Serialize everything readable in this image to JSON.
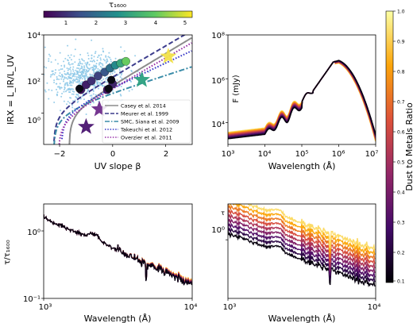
{
  "figure": {
    "top_colorbar_label": "τ₁₆₀₀",
    "top_colorbar_ticks": [
      "1",
      "2",
      "3",
      "4",
      "5"
    ],
    "right_colorbar_label": "Dust to Metals Ratio",
    "right_colorbar_ticks": [
      "0.1",
      "0.2",
      "0.3",
      "0.4",
      "0.5",
      "0.6",
      "0.7",
      "0.8",
      "0.9",
      "1.0"
    ]
  },
  "chart_data": [
    {
      "type": "scatter",
      "panel": "top-left",
      "xlabel": "UV slope β",
      "ylabel": "IRX = L_IR/L_UV",
      "xlim": [
        -2.6,
        3.0
      ],
      "ylim_log10": [
        -1.6,
        4.0
      ],
      "x_ticks": [
        "−2",
        "0",
        "2"
      ],
      "y_ticks": [
        "10⁰",
        "10²",
        "10⁴"
      ],
      "legend": {
        "placement": "lower-right",
        "entries": [
          {
            "label": "Casey et al. 2014",
            "color": "#8c8c8c",
            "style": "solid"
          },
          {
            "label": "Meurer et al. 1999",
            "color": "#3c3c8c",
            "style": "dashed"
          },
          {
            "label": "SMC, Siana et al. 2009",
            "color": "#3a8ca8",
            "style": "dashdot"
          },
          {
            "label": "Takeuchi et al. 2012",
            "color": "#3838c8",
            "style": "dotted"
          },
          {
            "label": "Overzier et al. 2011",
            "color": "#9830a8",
            "style": "dotted"
          }
        ]
      },
      "stars": [
        {
          "x": -1.0,
          "y_log10": -0.7,
          "color": "#4a1470"
        },
        {
          "x": -0.5,
          "y_log10": 0.2,
          "color": "#6e2a8a"
        },
        {
          "x": 1.1,
          "y_log10": 1.7,
          "color": "#2ba080"
        },
        {
          "x": 2.1,
          "y_log10": 2.9,
          "color": "#f2e24a"
        }
      ],
      "model_points": [
        {
          "x": -1.2,
          "y_log10": 1.2,
          "tau": 0.3
        },
        {
          "x": -1.0,
          "y_log10": 1.45,
          "tau": 0.5
        },
        {
          "x": -0.8,
          "y_log10": 1.65,
          "tau": 0.8
        },
        {
          "x": -0.55,
          "y_log10": 1.9,
          "tau": 1.1
        },
        {
          "x": -0.3,
          "y_log10": 2.1,
          "tau": 1.5
        },
        {
          "x": -0.1,
          "y_log10": 2.3,
          "tau": 2.0
        },
        {
          "x": 0.1,
          "y_log10": 2.45,
          "tau": 2.6
        },
        {
          "x": 0.3,
          "y_log10": 2.55,
          "tau": 3.3
        },
        {
          "x": 0.5,
          "y_log10": 2.65,
          "tau": 4.2
        },
        {
          "x": -0.2,
          "y_log10": 1.2,
          "tau": 0.3
        },
        {
          "x": 0.0,
          "y_log10": 1.5,
          "tau": 0.6
        }
      ]
    },
    {
      "type": "line",
      "panel": "top-right",
      "xlabel": "Wavelength (Å)",
      "ylabel": "F (mJy)",
      "x_log10_range": [
        3,
        7
      ],
      "y_log10_range": [
        3,
        8
      ],
      "x_ticks": [
        "10³",
        "10⁴",
        "10⁵",
        "10⁶",
        "10⁷"
      ],
      "y_ticks": [
        "10⁴",
        "10⁶",
        "10⁸"
      ]
    },
    {
      "type": "line",
      "panel": "bottom-left",
      "xlabel": "Wavelength (Å)",
      "ylabel": "τ/τ₁₆₀₀",
      "x_log10_range": [
        3,
        4
      ],
      "y_log10_range": [
        -1,
        0.4
      ],
      "x_ticks": [
        "10³",
        "10⁴"
      ],
      "y_ticks": [
        "10⁻¹",
        "10⁰"
      ]
    },
    {
      "type": "line",
      "panel": "bottom-right",
      "xlabel": "Wavelength (Å)",
      "ylabel": "τ",
      "x_log10_range": [
        3,
        4
      ],
      "y_log10_range": [
        -0.9,
        0.55
      ],
      "x_ticks": [
        "10³",
        "10⁴"
      ],
      "y_ticks": [
        "10⁰"
      ]
    }
  ]
}
